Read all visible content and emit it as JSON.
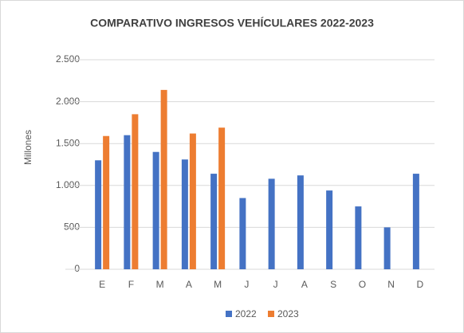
{
  "chart_data": {
    "type": "bar",
    "title": "COMPARATIVO INGRESOS VEHÍCULARES 2022-2023",
    "y_label": "Millones",
    "categories": [
      "E",
      "F",
      "M",
      "A",
      "M",
      "J",
      "J",
      "A",
      "S",
      "O",
      "N",
      "D"
    ],
    "series": [
      {
        "name": "2022",
        "color": "#4472c4",
        "values": [
          1300,
          1600,
          1400,
          1310,
          1140,
          850,
          1080,
          1120,
          940,
          750,
          500,
          1140
        ]
      },
      {
        "name": "2023",
        "color": "#ed7d31",
        "values": [
          1590,
          1850,
          2140,
          1620,
          1690,
          null,
          null,
          null,
          null,
          null,
          null,
          null
        ]
      }
    ],
    "ylim": [
      0,
      2500
    ],
    "yticks": [
      0,
      500,
      {
        "value": 1000,
        "label": "1.000"
      },
      {
        "value": 1500,
        "label": "1.500"
      },
      {
        "value": 2000,
        "label": "2.000"
      },
      {
        "value": 2500,
        "label": "2.500"
      }
    ],
    "grid": true,
    "legend": "bottom"
  }
}
